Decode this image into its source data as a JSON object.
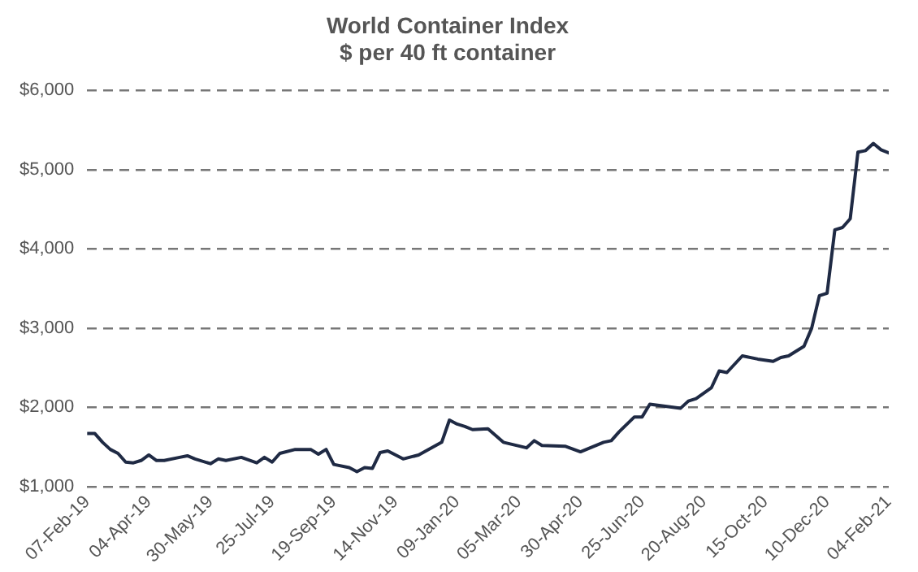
{
  "chart_data": {
    "type": "line",
    "title": "World Container Index",
    "subtitle": "$ per 40 ft container",
    "x": [
      "2019-02-07",
      "2019-02-14",
      "2019-02-21",
      "2019-02-28",
      "2019-03-07",
      "2019-03-14",
      "2019-03-21",
      "2019-03-28",
      "2019-04-04",
      "2019-04-11",
      "2019-04-18",
      "2019-05-02",
      "2019-05-09",
      "2019-05-16",
      "2019-05-30",
      "2019-06-06",
      "2019-06-13",
      "2019-06-27",
      "2019-07-11",
      "2019-07-18",
      "2019-07-25",
      "2019-08-01",
      "2019-08-15",
      "2019-08-29",
      "2019-09-05",
      "2019-09-12",
      "2019-09-19",
      "2019-10-03",
      "2019-10-10",
      "2019-10-17",
      "2019-10-24",
      "2019-10-31",
      "2019-11-07",
      "2019-11-21",
      "2019-12-05",
      "2019-12-26",
      "2020-01-02",
      "2020-01-09",
      "2020-01-16",
      "2020-01-23",
      "2020-02-06",
      "2020-02-20",
      "2020-03-12",
      "2020-03-19",
      "2020-03-26",
      "2020-04-16",
      "2020-04-30",
      "2020-05-21",
      "2020-05-28",
      "2020-06-04",
      "2020-06-18",
      "2020-06-25",
      "2020-07-02",
      "2020-07-30",
      "2020-08-06",
      "2020-08-13",
      "2020-08-27",
      "2020-09-03",
      "2020-09-10",
      "2020-09-24",
      "2020-10-08",
      "2020-10-22",
      "2020-10-29",
      "2020-11-05",
      "2020-11-19",
      "2020-11-26",
      "2020-12-03",
      "2020-12-10",
      "2020-12-17",
      "2020-12-24",
      "2020-12-31",
      "2021-01-07",
      "2021-01-14",
      "2021-01-21",
      "2021-01-28",
      "2021-02-04"
    ],
    "series": [
      {
        "color": "#1f2a44",
        "values": [
          1670,
          1670,
          1560,
          1470,
          1420,
          1310,
          1300,
          1330,
          1400,
          1330,
          1330,
          1370,
          1390,
          1350,
          1290,
          1350,
          1330,
          1370,
          1300,
          1370,
          1310,
          1420,
          1470,
          1470,
          1410,
          1470,
          1280,
          1240,
          1190,
          1240,
          1230,
          1430,
          1450,
          1350,
          1400,
          1560,
          1840,
          1790,
          1760,
          1720,
          1730,
          1560,
          1490,
          1580,
          1520,
          1510,
          1440,
          1560,
          1580,
          1690,
          1880,
          1880,
          2040,
          1990,
          2080,
          2110,
          2250,
          2460,
          2440,
          2650,
          2610,
          2580,
          2630,
          2650,
          2770,
          3000,
          3410,
          3440,
          4240,
          4270,
          4380,
          5220,
          5240,
          5330,
          5250,
          5210
        ]
      }
    ],
    "xlim": [
      "2019-02-07",
      "2021-02-04"
    ],
    "xticks": [
      {
        "value": "2019-02-07",
        "label": "07-Feb-19"
      },
      {
        "value": "2019-04-04",
        "label": "04-Apr-19"
      },
      {
        "value": "2019-05-30",
        "label": "30-May-19"
      },
      {
        "value": "2019-07-25",
        "label": "25-Jul-19"
      },
      {
        "value": "2019-09-19",
        "label": "19-Sep-19"
      },
      {
        "value": "2019-11-14",
        "label": "14-Nov-19"
      },
      {
        "value": "2020-01-09",
        "label": "09-Jan-20"
      },
      {
        "value": "2020-03-05",
        "label": "05-Mar-20"
      },
      {
        "value": "2020-04-30",
        "label": "30-Apr-20"
      },
      {
        "value": "2020-06-25",
        "label": "25-Jun-20"
      },
      {
        "value": "2020-08-20",
        "label": "20-Aug-20"
      },
      {
        "value": "2020-10-15",
        "label": "15-Oct-20"
      },
      {
        "value": "2020-12-10",
        "label": "10-Dec-20"
      },
      {
        "value": "2021-02-04",
        "label": "04-Feb-21"
      }
    ],
    "ylim": [
      1000,
      6000
    ],
    "yticks": [
      {
        "value": 1000,
        "label": "$1,000"
      },
      {
        "value": 2000,
        "label": "$2,000"
      },
      {
        "value": 3000,
        "label": "$3,000"
      },
      {
        "value": 4000,
        "label": "$4,000"
      },
      {
        "value": 5000,
        "label": "$5,000"
      },
      {
        "value": 6000,
        "label": "$6,000"
      }
    ],
    "grid": "y",
    "legend": false,
    "marker": "none",
    "line_style": "solid"
  }
}
